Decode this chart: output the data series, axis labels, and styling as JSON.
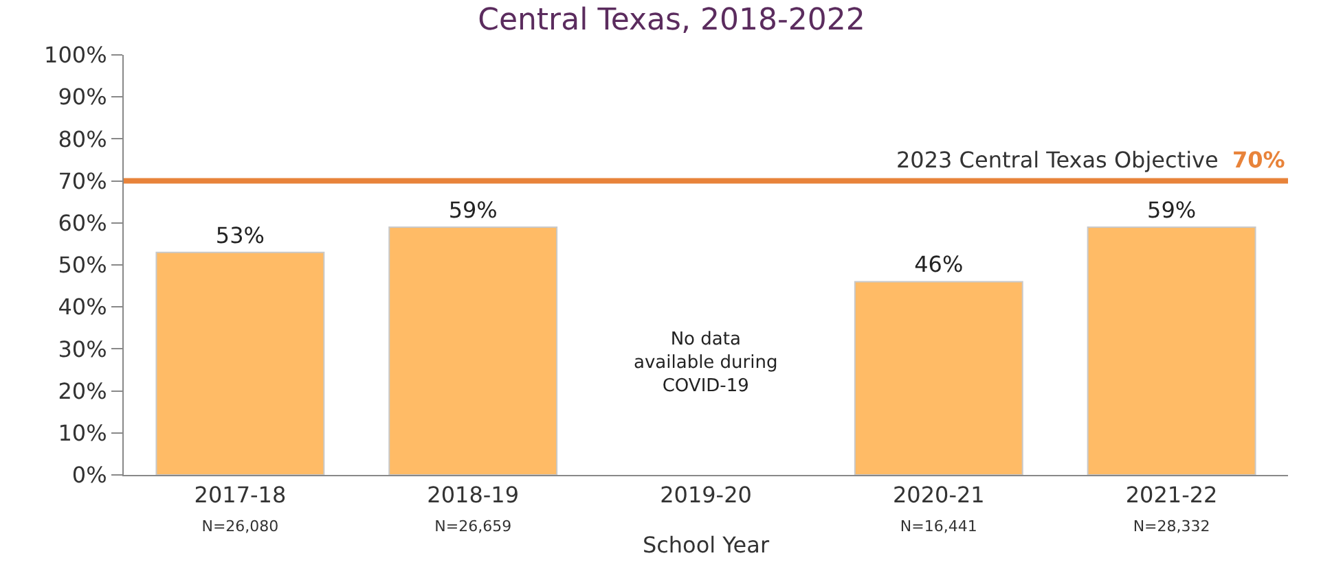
{
  "chart_data": {
    "type": "bar",
    "title": "Central Texas, 2018-2022",
    "xlabel": "School Year",
    "categories": [
      "2017-18\nN=26,080",
      "2018-19\nN=26,659",
      "2019-20",
      "2020-21\nN=16,441",
      "2021-22\nN=28,332"
    ],
    "values": [
      53,
      59,
      null,
      46,
      59
    ],
    "value_labels": [
      "53%",
      "59%",
      null,
      "46%",
      "59%"
    ],
    "color": "#ffbb66",
    "ylim": [
      0,
      100
    ],
    "yticks": [
      {
        "value": 0,
        "label": "0%"
      },
      {
        "value": 10,
        "label": "10%"
      },
      {
        "value": 20,
        "label": "20%"
      },
      {
        "value": 30,
        "label": "30%"
      },
      {
        "value": 40,
        "label": "40%"
      },
      {
        "value": 50,
        "label": "50%"
      },
      {
        "value": 60,
        "label": "60%"
      },
      {
        "value": 70,
        "label": "70%"
      },
      {
        "value": 80,
        "label": "80%"
      },
      {
        "value": 90,
        "label": "90%"
      },
      {
        "value": 100,
        "label": "100%"
      }
    ],
    "ref_lines": [
      {
        "axis": "y",
        "value": 70,
        "label": "2023 Central Texas Objective 70%",
        "color": "#e8833a"
      }
    ],
    "annotations": [
      "No data\navailable during\nCOVID-19"
    ]
  }
}
